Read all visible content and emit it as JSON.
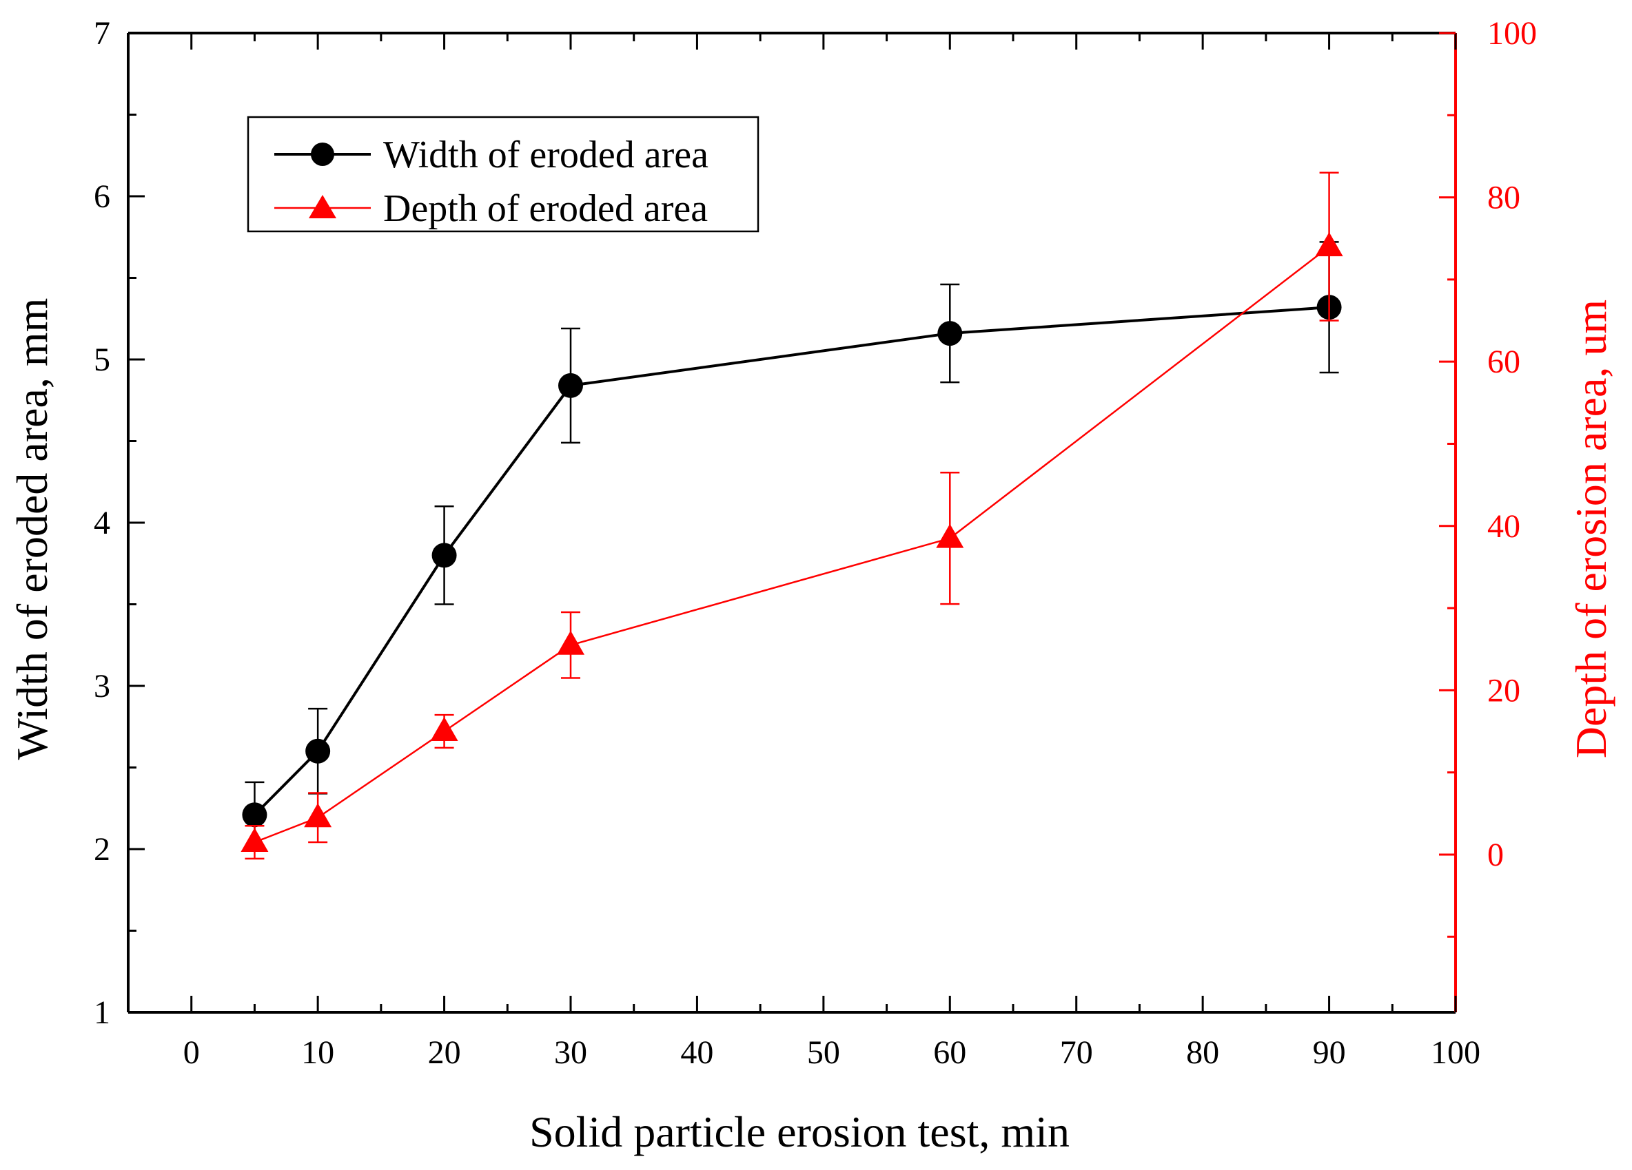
{
  "colors": {
    "black": "#000000",
    "red": "#ff0000"
  },
  "chart_data": {
    "type": "line",
    "xlabel": "Solid particle erosion test, min",
    "ylabel_left": "Width of eroded area, mm",
    "ylabel_right": "Depth of erosion area, um",
    "xlim": [
      -5,
      100
    ],
    "ylim_left": [
      1,
      7
    ],
    "ylim_right": [
      -19.2,
      100
    ],
    "xticks": [
      0,
      10,
      20,
      30,
      40,
      50,
      60,
      70,
      80,
      90,
      100
    ],
    "yticks_left": [
      1,
      2,
      3,
      4,
      5,
      6,
      7
    ],
    "yticks_right": [
      0,
      20,
      40,
      60,
      80,
      100
    ],
    "grid": false,
    "legend_position": "upper-left",
    "series": [
      {
        "name": "Width of eroded area",
        "axis": "left",
        "color": "#000000",
        "marker": "circle",
        "x": [
          5,
          10,
          20,
          30,
          60,
          90
        ],
        "values": [
          2.21,
          2.6,
          3.8,
          4.84,
          5.16,
          5.32
        ],
        "err": [
          0.2,
          0.26,
          0.3,
          0.35,
          0.3,
          0.4
        ]
      },
      {
        "name": "Depth of eroded area",
        "axis": "right",
        "color": "#ff0000",
        "marker": "triangle",
        "x": [
          5,
          10,
          20,
          30,
          60,
          90
        ],
        "values": [
          1.5,
          4.5,
          15.0,
          25.5,
          38.5,
          74.0
        ],
        "err": [
          2.0,
          3.0,
          2.0,
          4.0,
          8.0,
          9.0
        ]
      }
    ]
  }
}
